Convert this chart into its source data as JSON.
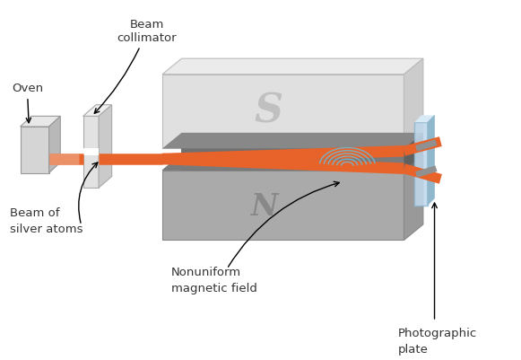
{
  "background_color": "#ffffff",
  "beam_color": "#E8632A",
  "beam_color_fade": "#f0b090",
  "oven_front": "#d5d5d5",
  "oven_top": "#e8e8e8",
  "oven_right": "#b8b8b8",
  "oven_edge": "#999999",
  "col_front": "#e2e2e2",
  "col_top": "#f0f0f0",
  "col_right": "#cacaca",
  "col_edge": "#aaaaaa",
  "mag_s_top": "#ebebeb",
  "mag_s_front": "#e0e0e0",
  "mag_s_right": "#cccccc",
  "mag_s_edge": "#bbbbbb",
  "mag_n_top": "#b8b8b8",
  "mag_n_front": "#aaaaaa",
  "mag_n_right": "#999999",
  "mag_n_edge": "#888888",
  "gap_back": "#707070",
  "gap_inside_top": "#808080",
  "gap_inside_bot": "#909090",
  "cav_top_face": "#888888",
  "cav_bot_face": "#7a7a7a",
  "cav_right_face": "#606060",
  "plate_face": "#c0d8ec",
  "plate_edge": "#90b8d0",
  "plate_side": "#90b8cc",
  "plate_top_face": "#d8eaf6",
  "mark_color": "#909090",
  "arc_color": "#70b8d0",
  "text_color": "#333333",
  "label_oven": "Oven",
  "label_col": "Beam\ncollimator",
  "label_beam": "Beam of\nsilver atoms",
  "label_field": "Nonuniform\nmagnetic field",
  "label_plate": "Photographic\nplate",
  "label_S": "S",
  "label_N": "N",
  "fontsize": 9.5
}
